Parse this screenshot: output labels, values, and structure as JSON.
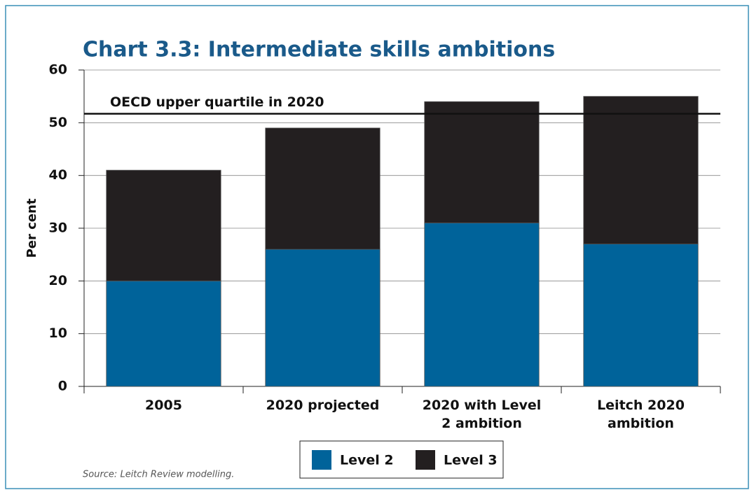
{
  "chart_data": {
    "type": "bar",
    "stacked": true,
    "title": "Chart 3.3: Intermediate skills ambitions",
    "y_label": "Per cent",
    "categories": [
      "2005",
      "2020 projected",
      "2020 with Level 2 ambition",
      "Leitch 2020 ambition"
    ],
    "series": [
      {
        "name": "Level 2",
        "color": "#00639a",
        "values": [
          20,
          26,
          31,
          27
        ]
      },
      {
        "name": "Level 3",
        "color": "#231f20",
        "values": [
          21,
          23,
          23,
          28
        ]
      }
    ],
    "reference_line": {
      "value": 51.7,
      "label": "OECD upper quartile in 2020"
    },
    "ylim": [
      0,
      60
    ],
    "yticks": [
      0,
      10,
      20,
      30,
      40,
      50,
      60
    ],
    "grid": true,
    "source": "Source: Leitch Review modelling."
  }
}
